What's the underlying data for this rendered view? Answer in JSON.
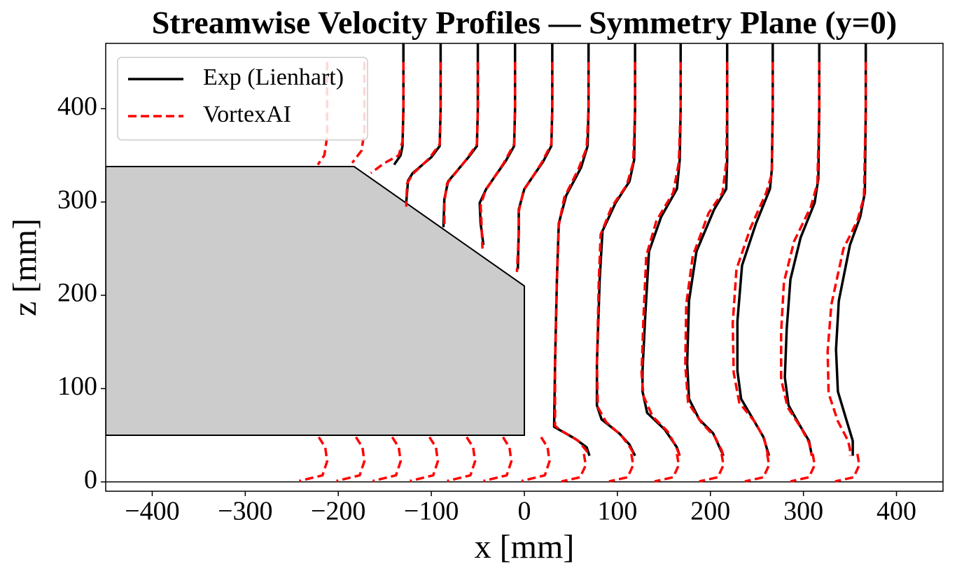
{
  "chart_data": {
    "type": "line",
    "title": "Streamwise Velocity Profiles — Symmetry Plane (y=0)",
    "x_label": "x [mm]",
    "y_label": "z [mm]",
    "xlim": [
      -450,
      450
    ],
    "ylim": [
      -10,
      470
    ],
    "xticks": [
      {
        "value": -400,
        "label": "−400"
      },
      {
        "value": -300,
        "label": "−300"
      },
      {
        "value": -200,
        "label": "−200"
      },
      {
        "value": -100,
        "label": "−100"
      },
      0,
      100,
      200,
      300,
      400
    ],
    "yticks": [
      0,
      100,
      200,
      300,
      400
    ],
    "legend": "upper left",
    "body": {
      "x": [
        -450,
        0,
        0,
        -183,
        -450
      ],
      "z": [
        50,
        50,
        210,
        338,
        338
      ],
      "color": "#cccccc"
    },
    "ground": 0,
    "series": [
      {
        "name": "Exp (Lienhart)",
        "color": "#000000",
        "dashed": false,
        "x": [
          -130,
          -130,
          -131,
          -133,
          -140,
          null,
          -90,
          -90,
          -91,
          -100,
          -120,
          -125,
          -127,
          null,
          -50,
          -50,
          -51,
          -60,
          -82,
          -86,
          -87,
          null,
          -10,
          -10,
          -11,
          -20,
          -41,
          -48,
          -47,
          -44,
          null,
          30,
          30,
          29,
          20,
          0,
          -6,
          -6,
          -7,
          null,
          69,
          69,
          68,
          61,
          45,
          37,
          35,
          33,
          32,
          55,
          67,
          70,
          null,
          119,
          119,
          118,
          113,
          98,
          84,
          81,
          78,
          78,
          83,
          102,
          113,
          119,
          null,
          168,
          168,
          167,
          164,
          147,
          134,
          130,
          127,
          127,
          132,
          151,
          164,
          167,
          null,
          218,
          218,
          218,
          217,
          204,
          185,
          177,
          175,
          177,
          188,
          203,
          214,
          null,
          267,
          267,
          266,
          264,
          249,
          234,
          229,
          229,
          233,
          246,
          257,
          263,
          null,
          317,
          317,
          316,
          312,
          297,
          286,
          282,
          280,
          284,
          297,
          306,
          309,
          null,
          367,
          367,
          366,
          361,
          350,
          338,
          335,
          337,
          346,
          353,
          353
        ],
        "values": [
          470,
          400,
          360,
          350,
          340,
          null,
          470,
          400,
          360,
          348,
          331,
          323,
          299,
          null,
          470,
          400,
          360,
          348,
          322,
          303,
          273,
          null,
          470,
          400,
          360,
          344,
          314,
          299,
          277,
          254,
          null,
          470,
          400,
          360,
          343,
          314,
          292,
          269,
          228,
          null,
          470,
          400,
          360,
          337,
          307,
          277,
          217,
          127,
          59,
          46,
          37,
          28,
          null,
          470,
          400,
          345,
          322,
          299,
          269,
          217,
          127,
          82,
          67,
          52,
          40,
          28,
          null,
          470,
          400,
          345,
          314,
          284,
          247,
          179,
          119,
          97,
          74,
          56,
          37,
          28,
          null,
          470,
          400,
          345,
          314,
          292,
          247,
          194,
          127,
          89,
          67,
          52,
          28,
          null,
          470,
          400,
          335,
          314,
          277,
          232,
          172,
          119,
          89,
          67,
          48,
          28,
          null,
          470,
          400,
          325,
          299,
          262,
          217,
          164,
          112,
          82,
          59,
          44,
          28,
          null,
          470,
          400,
          310,
          284,
          254,
          194,
          142,
          97,
          67,
          44,
          28
        ]
      },
      {
        "name": "VortexAI",
        "color": "#ff0000",
        "dashed": true,
        "x": [
          -212,
          -212,
          -215,
          -222,
          null,
          -172,
          -172,
          -175,
          -185,
          null,
          -130,
          -130,
          -131,
          -135,
          -150,
          -165,
          null,
          -90,
          -90,
          -91,
          -102,
          -120,
          -126,
          -127,
          null,
          -50,
          -50,
          -51,
          -62,
          -83,
          -86,
          -86,
          null,
          -10,
          -10,
          -11,
          -22,
          -42,
          -47,
          -46,
          -45,
          null,
          30,
          30,
          29,
          18,
          -1,
          -6,
          -6,
          -8,
          null,
          69,
          69,
          67,
          58,
          43,
          37,
          35,
          33,
          33,
          38,
          58,
          67,
          70,
          null,
          119,
          119,
          117,
          110,
          94,
          82,
          80,
          78,
          79,
          88,
          104,
          113,
          119,
          null,
          168,
          168,
          166,
          160,
          142,
          131,
          128,
          126,
          128,
          138,
          154,
          163,
          167,
          null,
          218,
          218,
          217,
          213,
          198,
          181,
          174,
          173,
          176,
          190,
          205,
          212,
          214,
          null,
          267,
          267,
          266,
          260,
          243,
          228,
          224,
          225,
          231,
          248,
          258,
          262,
          null,
          317,
          317,
          315,
          308,
          290,
          279,
          276,
          276,
          283,
          298,
          306,
          309,
          null,
          367,
          367,
          365,
          358,
          343,
          330,
          326,
          327,
          337,
          348,
          350,
          350,
          null,
          -221,
          -214,
          -212,
          -217,
          -242,
          null,
          -181,
          -174,
          -172,
          -177,
          -202,
          null,
          -142,
          -135,
          -133,
          -138,
          -163,
          null,
          -102,
          -95,
          -93,
          -98,
          -123,
          null,
          -62,
          -55,
          -53,
          -58,
          -83,
          null,
          -23,
          -16,
          -14,
          -19,
          -44,
          null,
          18,
          25,
          27,
          22,
          -3,
          null,
          64,
          66,
          60,
          40,
          null,
          115,
          117,
          111,
          91,
          null,
          164,
          166,
          160,
          140,
          null,
          212,
          214,
          208,
          188,
          null,
          261,
          263,
          257,
          237,
          null,
          310,
          312,
          306,
          286,
          null,
          358,
          360,
          354,
          334
        ],
        "values": [
          450,
          370,
          350,
          340,
          null,
          450,
          375,
          355,
          342,
          null,
          450,
          400,
          365,
          350,
          342,
          331,
          null,
          450,
          400,
          362,
          347,
          330,
          320,
          295,
          null,
          450,
          400,
          362,
          346,
          320,
          300,
          275,
          null,
          450,
          400,
          362,
          342,
          312,
          296,
          275,
          250,
          null,
          450,
          400,
          362,
          341,
          312,
          290,
          265,
          225,
          null,
          450,
          400,
          358,
          335,
          305,
          275,
          215,
          125,
          60,
          56,
          44,
          33,
          28,
          null,
          450,
          400,
          342,
          318,
          295,
          265,
          215,
          125,
          80,
          64,
          50,
          38,
          28,
          null,
          450,
          400,
          342,
          310,
          280,
          242,
          175,
          117,
          92,
          70,
          54,
          38,
          28,
          null,
          450,
          400,
          342,
          310,
          288,
          242,
          190,
          125,
          85,
          64,
          48,
          34,
          28,
          null,
          450,
          400,
          330,
          310,
          272,
          228,
          170,
          117,
          85,
          64,
          46,
          28,
          null,
          450,
          400,
          320,
          295,
          258,
          214,
          160,
          110,
          80,
          57,
          42,
          28,
          null,
          450,
          400,
          305,
          280,
          250,
          190,
          140,
          95,
          65,
          44,
          35,
          28,
          null,
          48,
          37,
          22,
          7,
          1,
          null,
          48,
          37,
          22,
          7,
          1,
          null,
          48,
          37,
          22,
          7,
          1,
          null,
          48,
          37,
          22,
          7,
          1,
          null,
          48,
          37,
          22,
          7,
          1,
          null,
          48,
          37,
          22,
          7,
          1,
          null,
          48,
          37,
          22,
          7,
          1,
          null,
          30,
          18,
          5,
          0.5,
          null,
          30,
          18,
          5,
          0.5,
          null,
          30,
          18,
          5,
          0.5,
          null,
          30,
          18,
          5,
          0.5,
          null,
          30,
          18,
          5,
          0.5,
          null,
          30,
          18,
          5,
          0.5,
          null,
          30,
          18,
          5,
          0.5
        ]
      }
    ]
  }
}
